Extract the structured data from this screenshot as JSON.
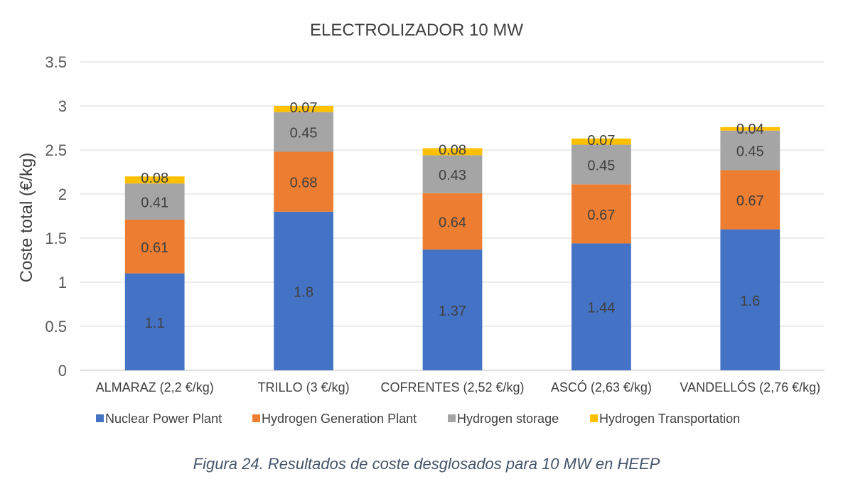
{
  "chart_data": {
    "type": "bar",
    "stacked": true,
    "title": "ELECTROLIZADOR 10 MW",
    "ylabel": "Coste total (€/kg)",
    "xlabel": "",
    "ylim": [
      0,
      3.5
    ],
    "yticks": [
      "0",
      "0.5",
      "1",
      "1.5",
      "2",
      "2.5",
      "3",
      "3.5"
    ],
    "grid": true,
    "legend_position": "bottom",
    "categories": [
      "ALMARAZ (2,2 €/kg)",
      "TRILLO (3 €/kg)",
      "COFRENTES (2,52 €/kg)",
      "ASCÓ (2,63 €/kg)",
      "VANDELLÓS (2,76 €/kg)"
    ],
    "series": [
      {
        "name": "Nuclear Power Plant",
        "color": "#4472c4",
        "values": [
          1.1,
          1.8,
          1.37,
          1.44,
          1.6
        ],
        "labels": [
          "1.1",
          "1.8",
          "1.37",
          "1.44",
          "1.6"
        ]
      },
      {
        "name": "Hydrogen Generation Plant",
        "color": "#ed7d31",
        "values": [
          0.61,
          0.68,
          0.64,
          0.67,
          0.67
        ],
        "labels": [
          "0.61",
          "0.68",
          "0.64",
          "0.67",
          "0.67"
        ]
      },
      {
        "name": "Hydrogen storage",
        "color": "#a5a5a5",
        "values": [
          0.41,
          0.45,
          0.43,
          0.45,
          0.45
        ],
        "labels": [
          "0.41",
          "0.45",
          "0.43",
          "0.45",
          "0.45"
        ]
      },
      {
        "name": "Hydrogen Transportation",
        "color": "#ffc000",
        "values": [
          0.08,
          0.07,
          0.08,
          0.07,
          0.04
        ],
        "labels": [
          "0.08",
          "0.07",
          "0.08",
          "0.07",
          "0.04"
        ]
      }
    ]
  },
  "caption": "Figura 24. Resultados de coste desglosados para 10 MW en HEEP"
}
